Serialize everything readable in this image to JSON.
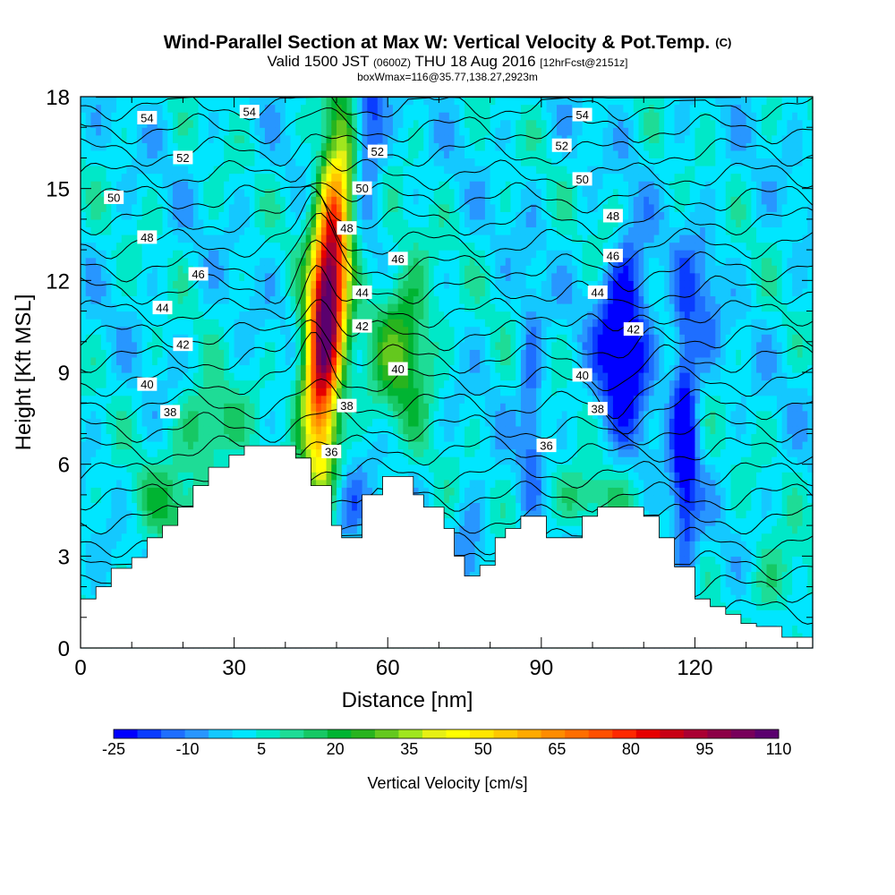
{
  "title": {
    "main": "Wind-Parallel Section at Max W: Vertical Velocity & Pot.Temp.",
    "copyright": "(C)",
    "valid_prefix": "Valid 1500 JST",
    "utc": "(0600Z)",
    "date": "THU 18 Aug 2016",
    "forecast": "[12hrFcst@2151z]",
    "box": "boxWmax=116@35.77,138.27,2923m"
  },
  "chart_data": {
    "type": "heatmap",
    "xlabel": "Distance [nm]",
    "ylabel": "Height [Kft MSL]",
    "xlim": [
      0,
      143
    ],
    "ylim": [
      0,
      18
    ],
    "x_ticks": [
      0,
      30,
      60,
      90,
      120
    ],
    "y_ticks": [
      0,
      3,
      6,
      9,
      12,
      15,
      18
    ],
    "colorbar": {
      "title": "Vertical Velocity [cm/s]",
      "tick_labels": [
        "-25",
        "-10",
        "5",
        "20",
        "35",
        "50",
        "65",
        "80",
        "95",
        "110"
      ],
      "levels": [
        -25,
        -20,
        -15,
        -10,
        -5,
        0,
        5,
        10,
        15,
        20,
        25,
        30,
        35,
        40,
        45,
        50,
        55,
        60,
        65,
        70,
        75,
        80,
        85,
        90,
        95,
        100,
        105,
        110
      ],
      "colors": [
        "#0000ff",
        "#0a3cff",
        "#1e6eff",
        "#2896ff",
        "#14c8ff",
        "#00e6ff",
        "#00e8c8",
        "#1edc96",
        "#16c864",
        "#00b432",
        "#28b41e",
        "#64c81e",
        "#a0e61e",
        "#e6f014",
        "#ffff00",
        "#ffe600",
        "#ffc800",
        "#ffaa00",
        "#ff8c00",
        "#ff6e00",
        "#ff5000",
        "#ff2800",
        "#e60000",
        "#c80014",
        "#aa0032",
        "#8c0046",
        "#78005a",
        "#5a006e"
      ]
    },
    "terrain": [
      [
        0,
        1.6
      ],
      [
        3,
        1.6
      ],
      [
        3,
        2.0
      ],
      [
        6,
        2.0
      ],
      [
        6,
        2.6
      ],
      [
        10,
        2.6
      ],
      [
        10,
        2.95
      ],
      [
        13,
        2.95
      ],
      [
        13,
        3.6
      ],
      [
        16,
        3.6
      ],
      [
        16,
        4.0
      ],
      [
        19,
        4.0
      ],
      [
        19,
        4.6
      ],
      [
        22,
        4.6
      ],
      [
        22,
        5.3
      ],
      [
        25,
        5.3
      ],
      [
        25,
        5.9
      ],
      [
        29,
        5.9
      ],
      [
        29,
        6.3
      ],
      [
        32,
        6.3
      ],
      [
        32,
        6.6
      ],
      [
        42,
        6.6
      ],
      [
        42,
        6.2
      ],
      [
        45,
        6.2
      ],
      [
        45,
        5.3
      ],
      [
        49,
        5.3
      ],
      [
        49,
        4.0
      ],
      [
        51,
        4.0
      ],
      [
        51,
        3.6
      ],
      [
        55,
        3.6
      ],
      [
        55,
        5.0
      ],
      [
        59,
        5.0
      ],
      [
        59,
        5.6
      ],
      [
        65,
        5.6
      ],
      [
        65,
        5.0
      ],
      [
        67,
        5.0
      ],
      [
        67,
        4.6
      ],
      [
        71,
        4.6
      ],
      [
        71,
        3.9
      ],
      [
        73,
        3.9
      ],
      [
        73,
        3.0
      ],
      [
        75,
        3.0
      ],
      [
        75,
        2.35
      ],
      [
        78,
        2.35
      ],
      [
        78,
        2.7
      ],
      [
        81,
        2.7
      ],
      [
        81,
        3.6
      ],
      [
        83,
        3.6
      ],
      [
        83,
        3.9
      ],
      [
        86,
        3.9
      ],
      [
        86,
        4.3
      ],
      [
        91,
        4.3
      ],
      [
        91,
        3.6
      ],
      [
        98,
        3.6
      ],
      [
        98,
        4.3
      ],
      [
        101,
        4.3
      ],
      [
        101,
        4.6
      ],
      [
        110,
        4.6
      ],
      [
        110,
        4.3
      ],
      [
        113,
        4.3
      ],
      [
        113,
        3.6
      ],
      [
        116,
        3.6
      ],
      [
        116,
        2.65
      ],
      [
        120,
        2.65
      ],
      [
        120,
        1.6
      ],
      [
        123,
        1.6
      ],
      [
        123,
        1.35
      ],
      [
        126,
        1.35
      ],
      [
        126,
        1.1
      ],
      [
        129,
        1.1
      ],
      [
        129,
        0.8
      ],
      [
        132,
        0.8
      ],
      [
        132,
        0.7
      ],
      [
        137,
        0.7
      ],
      [
        137,
        0.35
      ],
      [
        143,
        0.35
      ],
      [
        143,
        0
      ],
      [
        0,
        0
      ]
    ],
    "updraft_core": {
      "x": 48,
      "y": 10.5,
      "max": 116
    },
    "theta_labels": [
      {
        "text": "54",
        "x": 13,
        "y": 17.3
      },
      {
        "text": "54",
        "x": 33,
        "y": 17.5
      },
      {
        "text": "54",
        "x": 98,
        "y": 17.4
      },
      {
        "text": "52",
        "x": 20,
        "y": 16.0
      },
      {
        "text": "52",
        "x": 58,
        "y": 16.2
      },
      {
        "text": "52",
        "x": 94,
        "y": 16.4
      },
      {
        "text": "50",
        "x": 6.5,
        "y": 14.7
      },
      {
        "text": "50",
        "x": 55,
        "y": 15.0
      },
      {
        "text": "50",
        "x": 98,
        "y": 15.3
      },
      {
        "text": "48",
        "x": 13,
        "y": 13.4
      },
      {
        "text": "48",
        "x": 52,
        "y": 13.7
      },
      {
        "text": "48",
        "x": 104,
        "y": 14.1
      },
      {
        "text": "46",
        "x": 23,
        "y": 12.2
      },
      {
        "text": "46",
        "x": 62,
        "y": 12.7
      },
      {
        "text": "46",
        "x": 104,
        "y": 12.8
      },
      {
        "text": "44",
        "x": 16,
        "y": 11.1
      },
      {
        "text": "44",
        "x": 55,
        "y": 11.6
      },
      {
        "text": "44",
        "x": 101,
        "y": 11.6
      },
      {
        "text": "42",
        "x": 20,
        "y": 9.9
      },
      {
        "text": "42",
        "x": 55,
        "y": 10.5
      },
      {
        "text": "42",
        "x": 108,
        "y": 10.4
      },
      {
        "text": "40",
        "x": 13,
        "y": 8.6
      },
      {
        "text": "40",
        "x": 62,
        "y": 9.1
      },
      {
        "text": "40",
        "x": 98,
        "y": 8.9
      },
      {
        "text": "38",
        "x": 17.5,
        "y": 7.7
      },
      {
        "text": "38",
        "x": 52,
        "y": 7.9
      },
      {
        "text": "38",
        "x": 101,
        "y": 7.8
      },
      {
        "text": "36",
        "x": 49,
        "y": 6.4
      },
      {
        "text": "36",
        "x": 91,
        "y": 6.6
      }
    ]
  }
}
